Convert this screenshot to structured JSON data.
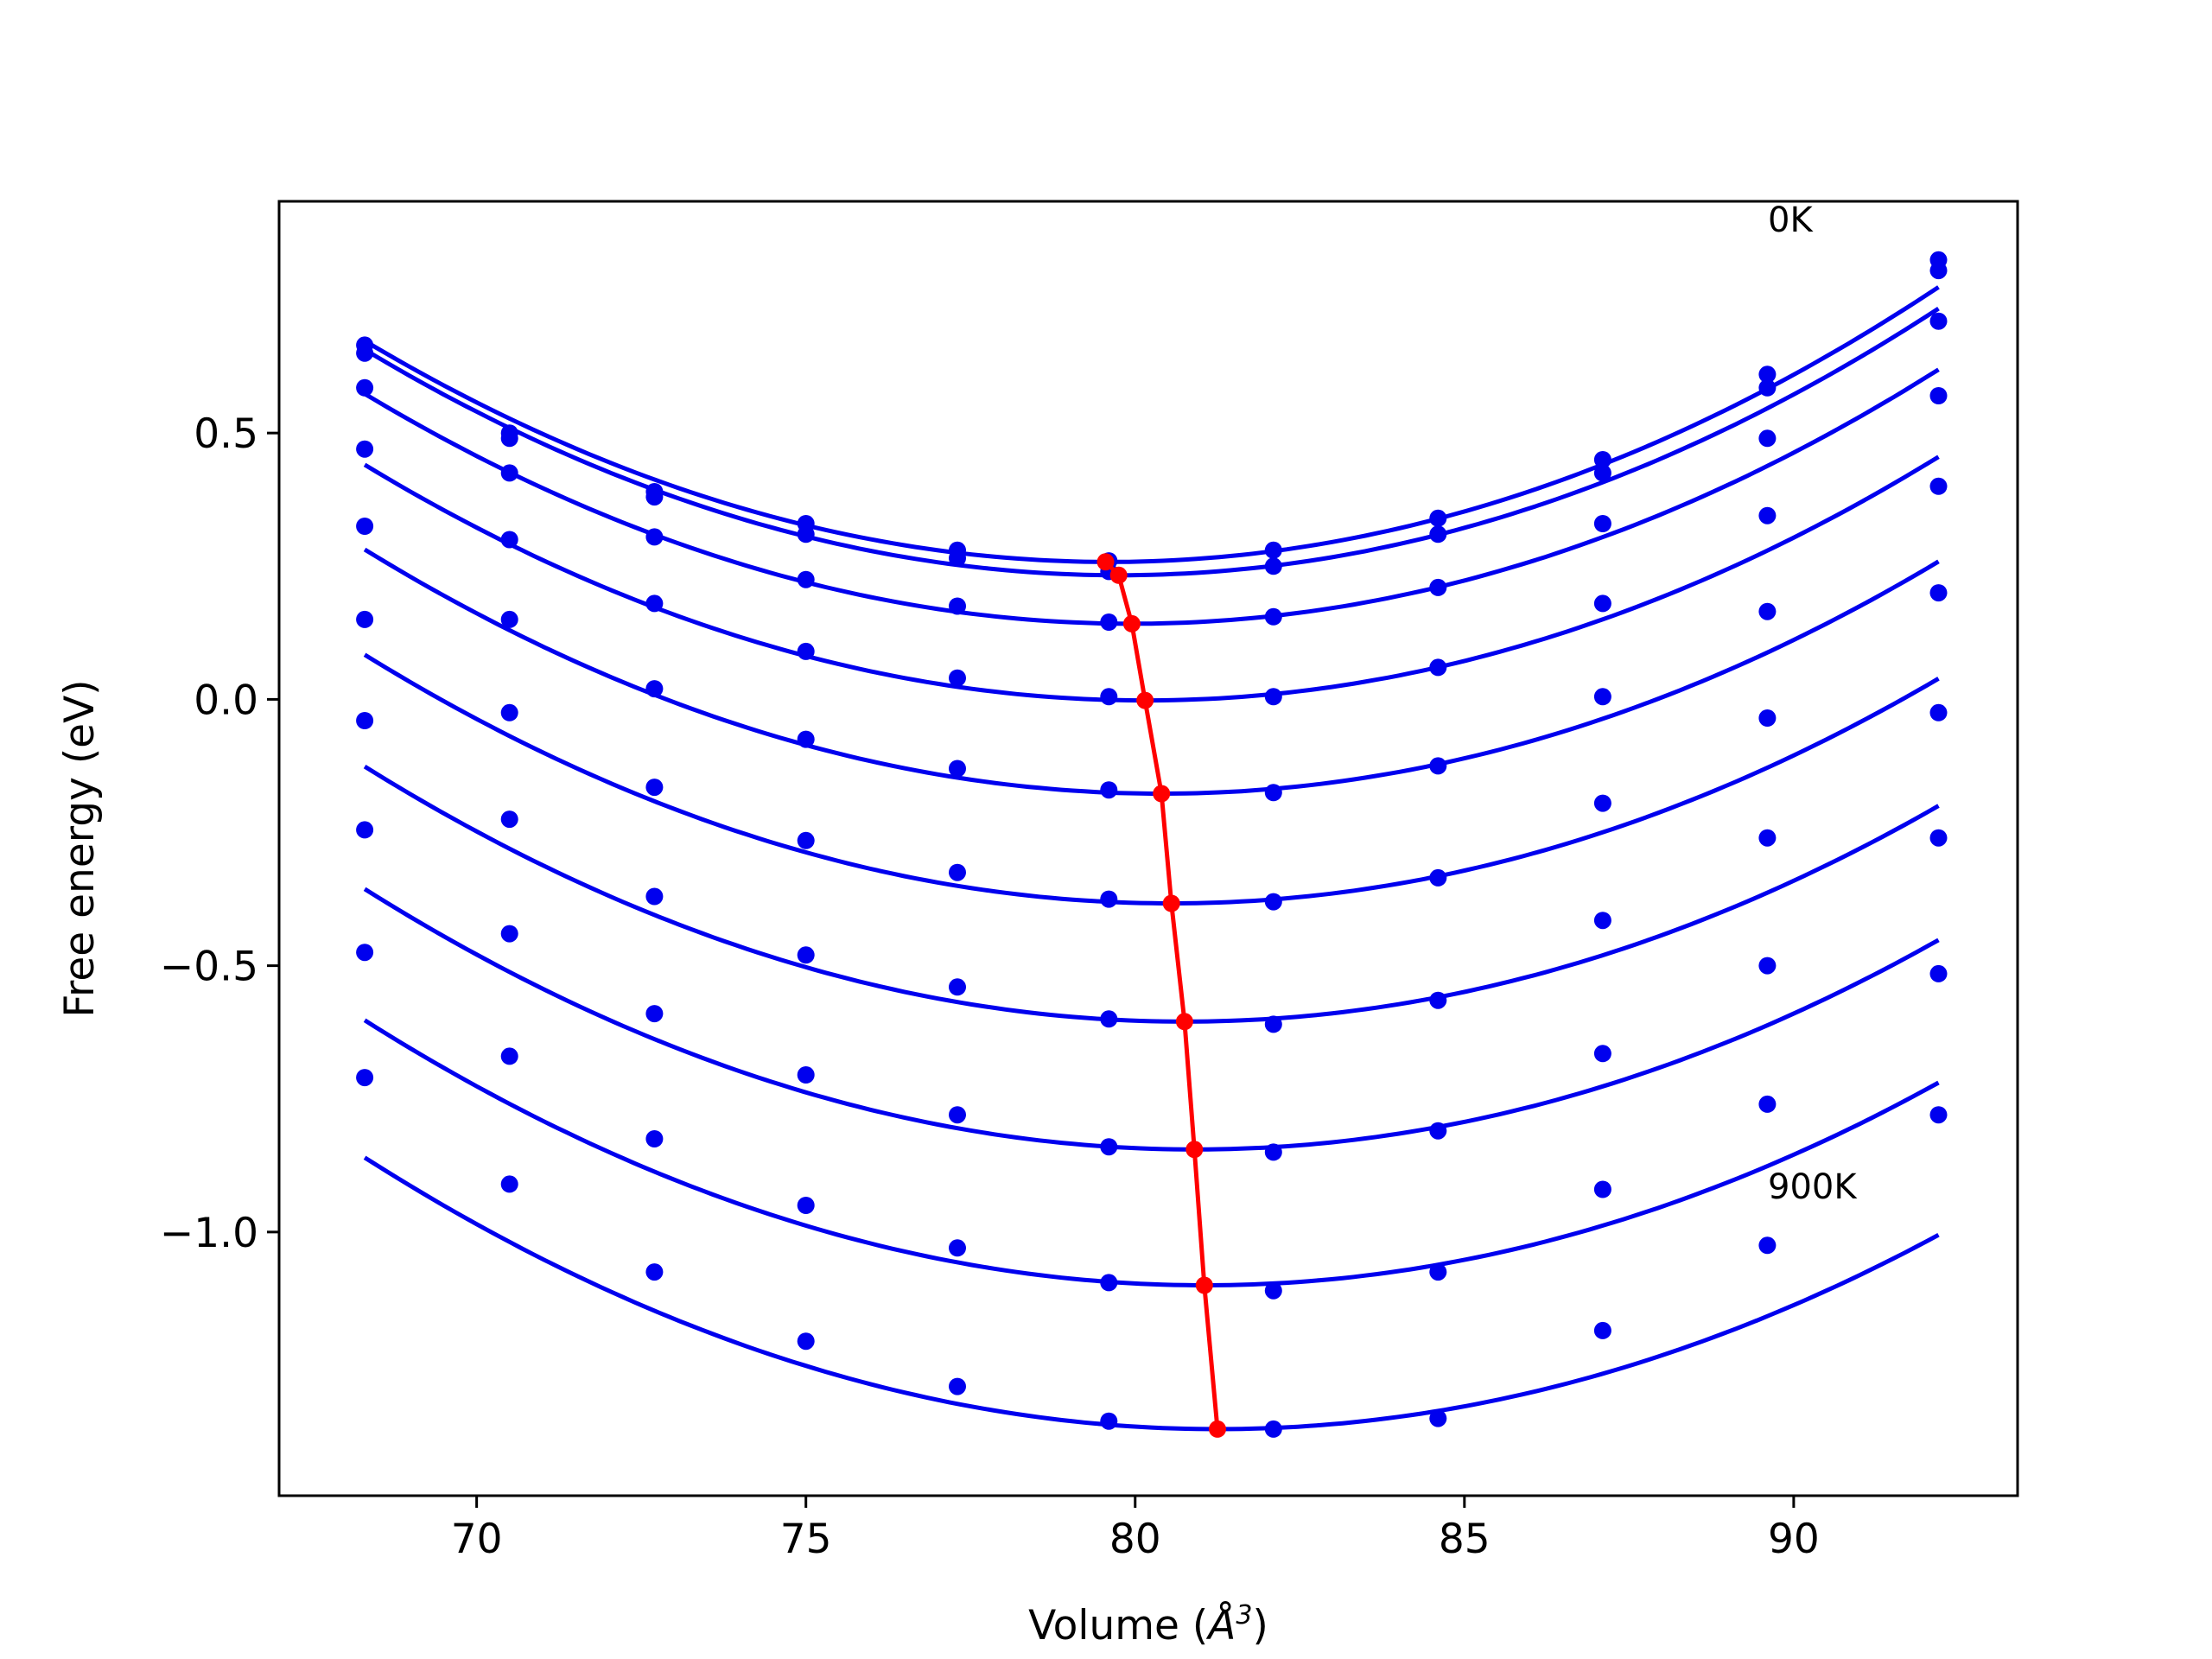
{
  "chart_data": {
    "type": "line",
    "xlabel_prefix": "Volume (",
    "xlabel_symbol": "Å",
    "xlabel_exp": "3",
    "xlabel_suffix": ")",
    "ylabel": "Free energy (eV)",
    "xlim": [
      67.0,
      93.4
    ],
    "ylim": [
      -1.495,
      0.935
    ],
    "x_ticks": [
      70,
      75,
      80,
      85,
      90
    ],
    "x_tick_labels": [
      "70",
      "75",
      "80",
      "85",
      "90"
    ],
    "y_ticks": [
      -1.0,
      -0.5,
      0.0,
      0.5
    ],
    "y_tick_labels": [
      "−1.0",
      "−0.5",
      "0.0",
      "0.5"
    ],
    "grid": false,
    "legend": "none",
    "annotations": [
      {
        "text": "0K",
        "x": 89.6,
        "y": 0.895
      },
      {
        "text": "900K",
        "x": 89.6,
        "y": -0.915
      }
    ],
    "colors": {
      "series": "#0000ee",
      "minimum_path": "#ff0000"
    },
    "volumes": [
      68.3,
      70.5,
      72.7,
      75.0,
      77.3,
      79.6,
      82.1,
      84.6,
      87.1,
      89.6,
      92.2
    ],
    "series": [
      {
        "values": [
          0.665,
          0.5,
          0.39,
          0.33,
          0.28,
          0.26,
          0.28,
          0.34,
          0.45,
          0.61,
          0.825
        ]
      },
      {
        "values": [
          0.65,
          0.49,
          0.38,
          0.31,
          0.265,
          0.24,
          0.25,
          0.31,
          0.425,
          0.585,
          0.805
        ]
      },
      {
        "values": [
          0.585,
          0.425,
          0.305,
          0.225,
          0.175,
          0.145,
          0.155,
          0.21,
          0.33,
          0.49,
          0.71
        ]
      },
      {
        "values": [
          0.47,
          0.3,
          0.18,
          0.09,
          0.04,
          0.005,
          0.005,
          0.06,
          0.18,
          0.345,
          0.57
        ]
      },
      {
        "values": [
          0.325,
          0.15,
          0.02,
          -0.075,
          -0.13,
          -0.17,
          -0.175,
          -0.125,
          0.005,
          0.165,
          0.4
        ]
      },
      {
        "values": [
          0.15,
          -0.025,
          -0.165,
          -0.265,
          -0.325,
          -0.375,
          -0.38,
          -0.335,
          -0.195,
          -0.035,
          0.2
        ]
      },
      {
        "values": [
          -0.04,
          -0.225,
          -0.37,
          -0.48,
          -0.54,
          -0.6,
          -0.61,
          -0.565,
          -0.415,
          -0.26,
          -0.025
        ]
      },
      {
        "values": [
          -0.245,
          -0.44,
          -0.59,
          -0.705,
          -0.78,
          -0.84,
          -0.85,
          -0.81,
          -0.665,
          -0.5,
          -0.26
        ]
      },
      {
        "values": [
          -0.475,
          -0.67,
          -0.825,
          -0.95,
          -1.03,
          -1.095,
          -1.11,
          -1.075,
          -0.92,
          -0.76,
          -0.515
        ]
      },
      {
        "values": [
          -0.71,
          -0.91,
          -1.075,
          -1.205,
          -1.29,
          -1.355,
          -1.37,
          -1.35,
          -1.185,
          -1.025,
          -0.78
        ]
      }
    ],
    "fits": [
      {
        "vmin": 79.6,
        "emin": 0.258,
        "a": 0.00325
      },
      {
        "vmin": 79.75,
        "emin": 0.233,
        "a": 0.00323
      },
      {
        "vmin": 79.95,
        "emin": 0.142,
        "a": 0.00318
      },
      {
        "vmin": 80.15,
        "emin": -0.002,
        "a": 0.00315
      },
      {
        "vmin": 80.4,
        "emin": -0.177,
        "a": 0.00313
      },
      {
        "vmin": 80.55,
        "emin": -0.383,
        "a": 0.00311
      },
      {
        "vmin": 80.75,
        "emin": -0.605,
        "a": 0.00309
      },
      {
        "vmin": 80.9,
        "emin": -0.845,
        "a": 0.00308
      },
      {
        "vmin": 81.05,
        "emin": -1.1,
        "a": 0.00306
      },
      {
        "vmin": 81.25,
        "emin": -1.37,
        "a": 0.00304
      }
    ],
    "minimum_path": {
      "x": [
        79.55,
        79.75,
        79.95,
        80.15,
        80.4,
        80.55,
        80.75,
        80.9,
        81.05,
        81.25
      ],
      "y": [
        0.258,
        0.233,
        0.142,
        -0.002,
        -0.177,
        -0.383,
        -0.605,
        -0.845,
        -1.1,
        -1.37
      ]
    }
  }
}
